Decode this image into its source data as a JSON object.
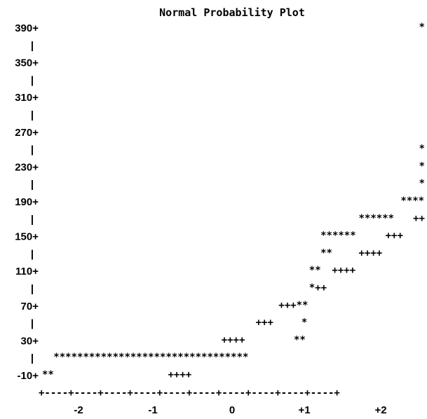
{
  "chart_data": {
    "type": "scatter",
    "title": "Normal Probability Plot",
    "xlabel": "",
    "ylabel": "",
    "xlim": [
      -2.5,
      2.5
    ],
    "ylim": [
      -10,
      390
    ],
    "y_ticks": [
      "390+",
      "350+",
      "310+",
      "270+",
      "230+",
      "190+",
      "150+",
      "110+",
      "70+",
      "30+",
      "-10+"
    ],
    "x_ticks": [
      "-2",
      "-1",
      "0",
      "+1",
      "+2"
    ],
    "x_axis_line": "+----+----+----+----+----+----+----+----+----+----+",
    "rows": [
      {
        "y": 390,
        "label": "390+",
        "marks": [
          {
            "x": 2.5,
            "text": "*"
          }
        ]
      },
      {
        "y": 370,
        "label": "|",
        "marks": []
      },
      {
        "y": 350,
        "label": "350+",
        "marks": []
      },
      {
        "y": 330,
        "label": "|",
        "marks": []
      },
      {
        "y": 310,
        "label": "310+",
        "marks": []
      },
      {
        "y": 290,
        "label": "|",
        "marks": []
      },
      {
        "y": 270,
        "label": "270+",
        "marks": []
      },
      {
        "y": 250,
        "label": "|",
        "marks": [
          {
            "x": 2.5,
            "text": "*"
          }
        ]
      },
      {
        "y": 230,
        "label": "230+",
        "marks": [
          {
            "x": 2.5,
            "text": "*"
          }
        ]
      },
      {
        "y": 210,
        "label": "|",
        "marks": [
          {
            "x": 2.5,
            "text": "*"
          }
        ]
      },
      {
        "y": 190,
        "label": "190+",
        "marks": [
          {
            "x": 2.2,
            "text": "****"
          }
        ]
      },
      {
        "y": 170,
        "label": "|",
        "marks": [
          {
            "x": 1.65,
            "text": "******"
          },
          {
            "x": 2.45,
            "text": "++"
          }
        ]
      },
      {
        "y": 150,
        "label": "150+",
        "marks": [
          {
            "x": 1.15,
            "text": "******"
          },
          {
            "x": 2.0,
            "text": "+++"
          }
        ]
      },
      {
        "y": 130,
        "label": "|",
        "marks": [
          {
            "x": 1.15,
            "text": "**"
          },
          {
            "x": 1.65,
            "text": "++++"
          }
        ]
      },
      {
        "y": 110,
        "label": "110+",
        "marks": [
          {
            "x": 1.0,
            "text": "**"
          },
          {
            "x": 1.3,
            "text": "++++"
          }
        ]
      },
      {
        "y": 90,
        "label": "|",
        "marks": [
          {
            "x": 1.0,
            "text": "*++"
          }
        ]
      },
      {
        "y": 70,
        "label": "70+",
        "marks": [
          {
            "x": 0.6,
            "text": "+++**"
          }
        ]
      },
      {
        "y": 50,
        "label": "|",
        "marks": [
          {
            "x": 0.3,
            "text": "+++"
          },
          {
            "x": 0.9,
            "text": "*"
          }
        ]
      },
      {
        "y": 30,
        "label": "30+",
        "marks": [
          {
            "x": -0.15,
            "text": "++++"
          },
          {
            "x": 0.8,
            "text": "**"
          }
        ]
      },
      {
        "y": 10,
        "label": "|",
        "marks": [
          {
            "x": -2.35,
            "text": "*********************************"
          }
        ]
      },
      {
        "y": -10,
        "label": "-10+",
        "marks": [
          {
            "x": -2.5,
            "text": "**"
          },
          {
            "x": -0.85,
            "text": "++++"
          }
        ]
      }
    ]
  }
}
